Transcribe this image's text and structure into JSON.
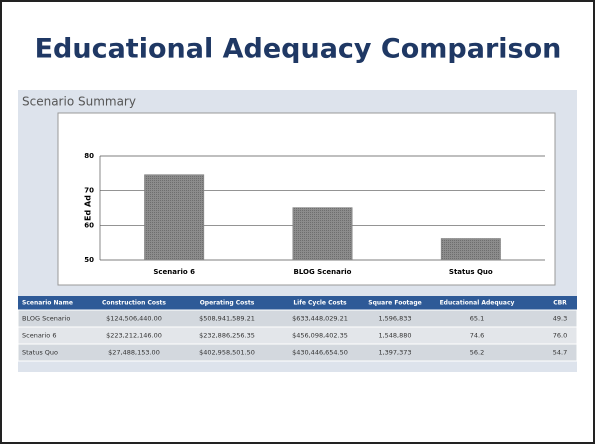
{
  "title": "Educational Adequacy Comparison",
  "panel_title": "Scenario Summary",
  "chart_data": {
    "type": "bar",
    "y_label": "Ed Ad",
    "categories": [
      "Scenario 6",
      "BLOG Scenario",
      "Status Quo"
    ],
    "values": [
      74.6,
      65.1,
      56.2
    ],
    "color": "#7f7f7f",
    "ylim": [
      50,
      80
    ],
    "yticks": [
      50,
      60,
      70,
      80
    ],
    "grid": true
  },
  "table": {
    "columns": [
      "Scenario Name",
      "Construction Costs",
      "Operating Costs",
      "Life Cycle Costs",
      "Square Footage",
      "Educational Adequacy",
      "CBR"
    ],
    "rows": [
      [
        "BLOG Scenario",
        "$124,506,440.00",
        "$508,941,589.21",
        "$633,448,029.21",
        "1,596,833",
        "65.1",
        "49.3"
      ],
      [
        "Scenario 6",
        "$223,212,146.00",
        "$232,886,256.35",
        "$456,098,402.35",
        "1,548,880",
        "74.6",
        "76.0"
      ],
      [
        "Status Quo",
        "$27,488,153.00",
        "$402,958,501.50",
        "$430,446,654.50",
        "1,397,373",
        "56.2",
        "54.7"
      ]
    ]
  }
}
